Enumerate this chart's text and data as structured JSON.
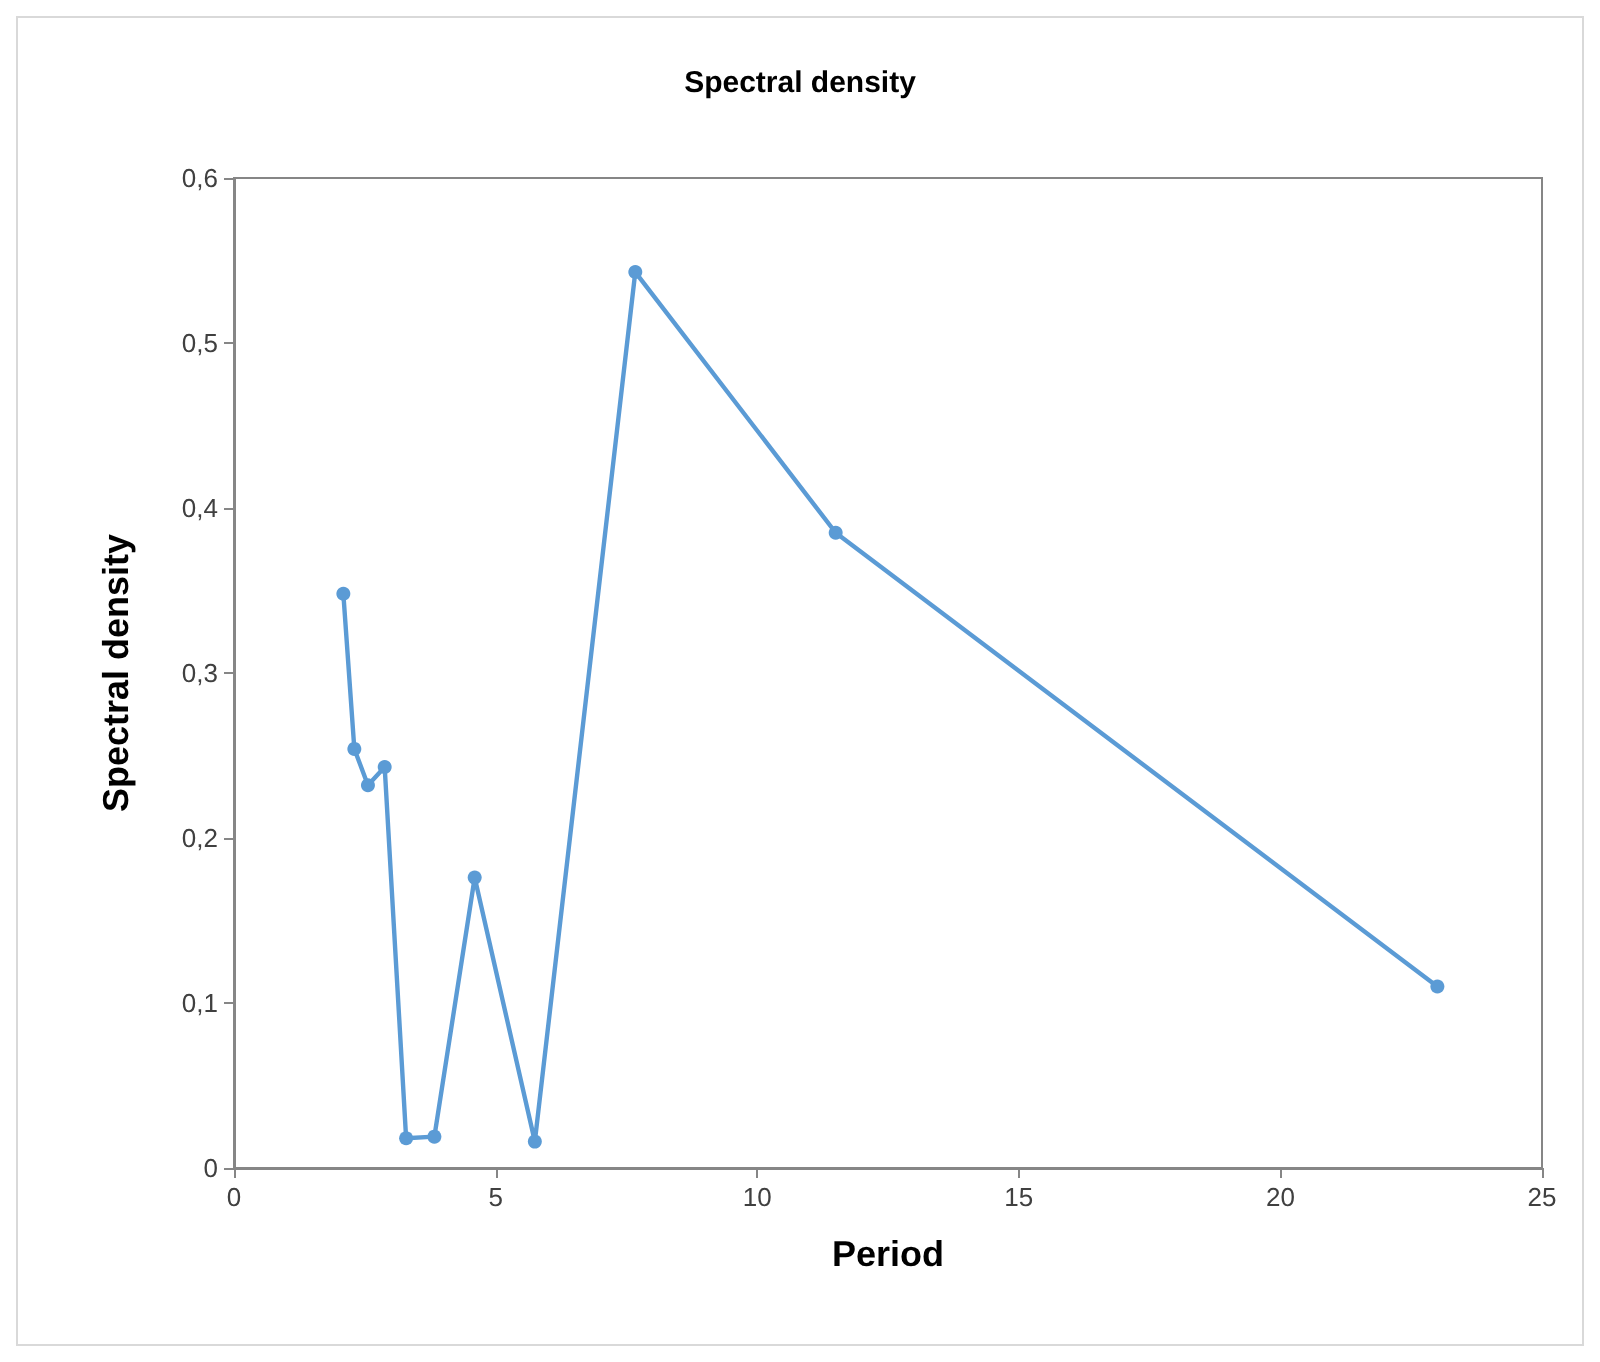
{
  "chart_data": {
    "type": "line",
    "title": "Spectral density",
    "xlabel": "Period",
    "ylabel": "Spectral density",
    "x": [
      2.09,
      2.3,
      2.56,
      2.88,
      3.29,
      3.83,
      4.6,
      5.75,
      7.67,
      11.5,
      23
    ],
    "series": [
      {
        "color": "#5b9bd5",
        "values": [
          0.348,
          0.254,
          0.232,
          0.243,
          0.018,
          0.019,
          0.176,
          0.016,
          0.543,
          0.385,
          0.11
        ]
      }
    ],
    "xlim": [
      0,
      25
    ],
    "xticks": [
      0,
      5,
      10,
      15,
      20,
      25
    ],
    "ylim": [
      0,
      0.6
    ],
    "yticks": [
      0,
      {
        "value": 0.1,
        "label": "0,1"
      },
      {
        "value": 0.2,
        "label": "0,2"
      },
      {
        "value": 0.3,
        "label": "0,3"
      },
      {
        "value": 0.4,
        "label": "0,4"
      },
      {
        "value": 0.5,
        "label": "0,5"
      },
      {
        "value": 0.6,
        "label": "0,6"
      }
    ],
    "marker": "circle",
    "line_style": "solid"
  }
}
